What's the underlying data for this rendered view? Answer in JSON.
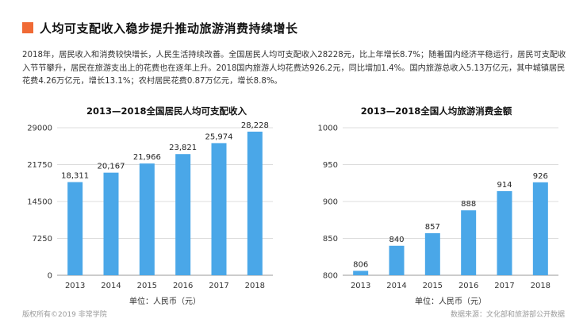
{
  "header": {
    "title": "人均可支配收入稳步提升推动旅游消费持续增长"
  },
  "summary": {
    "text": "2018年，居民收入和消费较快增长，人民生活持续改善。全国居民人均可支配收入28228元，比上年增长8.7%；随着国内经济平稳运行，居民可支配收入节节攀升，居民在旅游支出上的花费也在逐年上升。2018国内旅游人均花费达926.2元，同比增加1.4%。国内旅游总收入5.13万亿元，其中城镇居民花费4.26万亿元，增长13.1%；农村居民花费0.87万亿元，增长8.8%。"
  },
  "footer": {
    "copyright": "版权所有©2019 非常学院",
    "source": "数据来源：文化部和旅游部公开数据"
  },
  "colors": {
    "bar": "#4aa7e8",
    "accent": "#f06a35",
    "grid": "#dcdcdc"
  },
  "chart_data": [
    {
      "type": "bar",
      "title": "2013—2018全国居民人均可支配收入",
      "categories": [
        "2013",
        "2014",
        "2015",
        "2016",
        "2017",
        "2018"
      ],
      "values": [
        18311,
        20167,
        21966,
        23821,
        25974,
        28228
      ],
      "value_labels": [
        "18,311",
        "20,167",
        "21,966",
        "23,821",
        "25,974",
        "28,228"
      ],
      "yticks": [
        0,
        7250,
        14500,
        21750,
        29000
      ],
      "ytick_labels": [
        "0",
        "7250",
        "14500",
        "21750",
        "29000"
      ],
      "ylim": [
        0,
        29000
      ],
      "xlabel": "单位：人民币（元）",
      "grid": true
    },
    {
      "type": "bar",
      "title": "2013—2018全国人均旅游消费金额",
      "categories": [
        "2013",
        "2014",
        "2015",
        "2016",
        "2017",
        "2018"
      ],
      "values": [
        806,
        840,
        857,
        888,
        914,
        926
      ],
      "value_labels": [
        "806",
        "840",
        "857",
        "888",
        "914",
        "926"
      ],
      "yticks": [
        800,
        850,
        900,
        950,
        1000
      ],
      "ytick_labels": [
        "800",
        "850",
        "900",
        "950",
        "1000"
      ],
      "ylim": [
        800,
        1000
      ],
      "xlabel": "单位：人民币（元）",
      "grid": true
    }
  ]
}
